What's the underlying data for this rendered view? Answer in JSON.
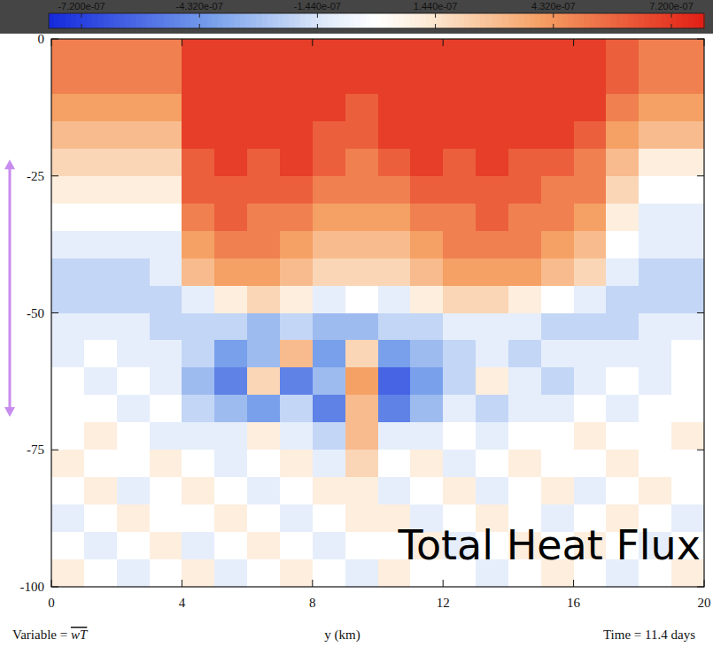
{
  "chart_data": {
    "type": "heatmap",
    "annotation": "Total Heat Flux",
    "variable_label": "Variable = wT",
    "time_label": "Time = 11.4 days",
    "x_label": "y (km)",
    "xlim": [
      0,
      20
    ],
    "xticks": [
      0,
      4,
      8,
      12,
      16,
      20
    ],
    "ylim": [
      -100,
      0
    ],
    "yticks": [
      0,
      -25,
      -50,
      -75,
      -100
    ],
    "range_arrow": {
      "y": [
        -22,
        -69
      ],
      "color": "#c88cf0"
    },
    "colorbar": {
      "range": [
        -8e-07,
        8e-07
      ],
      "ticks": [
        {
          "value": -7.2e-07,
          "label": "-7.200e-07"
        },
        {
          "value": -4.32e-07,
          "label": "-4.320e-07"
        },
        {
          "value": -1.44e-07,
          "label": "-1.440e-07"
        },
        {
          "value": 1.44e-07,
          "label": "1.440e-07"
        },
        {
          "value": 4.32e-07,
          "label": "4.320e-07"
        },
        {
          "value": 7.2e-07,
          "label": "7.200e-07"
        }
      ]
    },
    "x_edges": [
      0,
      1,
      2,
      3,
      4,
      5,
      6,
      7,
      8,
      9,
      10,
      11,
      12,
      13,
      14,
      15,
      16,
      17,
      18,
      19,
      20
    ],
    "y_edges": [
      0,
      -5,
      -10,
      -15,
      -20,
      -25,
      -30,
      -35,
      -40,
      -45,
      -50,
      -55,
      -60,
      -65,
      -70,
      -75,
      -80,
      -85,
      -90,
      -95,
      -100
    ],
    "cells": [
      [
        5e-07,
        5e-07,
        5e-07,
        5e-07,
        7e-07,
        7e-07,
        7e-07,
        7e-07,
        7e-07,
        7e-07,
        7e-07,
        7e-07,
        7e-07,
        7e-07,
        7e-07,
        7e-07,
        7e-07,
        6e-07,
        5e-07,
        5e-07
      ],
      [
        5e-07,
        5e-07,
        5e-07,
        5e-07,
        7e-07,
        7e-07,
        7e-07,
        7e-07,
        7e-07,
        7e-07,
        7e-07,
        7e-07,
        7e-07,
        7e-07,
        7e-07,
        7e-07,
        7e-07,
        6e-07,
        5e-07,
        5e-07
      ],
      [
        4e-07,
        4e-07,
        4e-07,
        4e-07,
        7e-07,
        7e-07,
        7e-07,
        7e-07,
        7e-07,
        6e-07,
        7e-07,
        7e-07,
        7e-07,
        7e-07,
        7e-07,
        7e-07,
        7e-07,
        5e-07,
        4e-07,
        4e-07
      ],
      [
        3e-07,
        3e-07,
        3e-07,
        3e-07,
        7e-07,
        7e-07,
        7e-07,
        7e-07,
        6e-07,
        6e-07,
        7e-07,
        7e-07,
        7e-07,
        7e-07,
        7e-07,
        7e-07,
        6e-07,
        4e-07,
        3e-07,
        3e-07
      ],
      [
        2e-07,
        2e-07,
        2e-07,
        2e-07,
        6e-07,
        7e-07,
        6e-07,
        7e-07,
        6e-07,
        5e-07,
        6e-07,
        7e-07,
        6e-07,
        7e-07,
        6e-07,
        6e-07,
        5e-07,
        3e-07,
        1e-07,
        1e-07
      ],
      [
        1e-07,
        1e-07,
        1e-07,
        1e-07,
        6e-07,
        6e-07,
        6e-07,
        6e-07,
        5e-07,
        5e-07,
        5e-07,
        6e-07,
        6e-07,
        6e-07,
        6e-07,
        5e-07,
        5e-07,
        2e-07,
        0,
        0
      ],
      [
        0,
        0,
        0,
        0,
        5e-07,
        6e-07,
        5e-07,
        5e-07,
        4e-07,
        4e-07,
        4e-07,
        5e-07,
        5e-07,
        6e-07,
        5e-07,
        5e-07,
        4e-07,
        1e-07,
        -1e-07,
        -1e-07
      ],
      [
        -1e-07,
        -1e-07,
        -1e-07,
        -1e-07,
        4e-07,
        5e-07,
        5e-07,
        4e-07,
        3e-07,
        3e-07,
        3e-07,
        4e-07,
        5e-07,
        5e-07,
        5e-07,
        4e-07,
        3e-07,
        0,
        -1e-07,
        -1e-07
      ],
      [
        -2e-07,
        -2e-07,
        -2e-07,
        -1e-07,
        3e-07,
        4e-07,
        4e-07,
        3e-07,
        2e-07,
        2e-07,
        2e-07,
        3e-07,
        4e-07,
        4e-07,
        4e-07,
        3e-07,
        2e-07,
        -1e-07,
        -2e-07,
        -2e-07
      ],
      [
        -2e-07,
        -2e-07,
        -2e-07,
        -2e-07,
        -1e-07,
        1e-07,
        2e-07,
        1e-07,
        -1e-07,
        0,
        -1e-07,
        1e-07,
        2e-07,
        2e-07,
        1e-07,
        0,
        -1e-07,
        -2e-07,
        -2e-07,
        -2e-07
      ],
      [
        -1e-07,
        -1e-07,
        -1e-07,
        -2e-07,
        -2e-07,
        -2e-07,
        -3e-07,
        -2e-07,
        -3e-07,
        -3e-07,
        -2e-07,
        -2e-07,
        -1e-07,
        -1e-07,
        -1e-07,
        -2e-07,
        -2e-07,
        -2e-07,
        -1e-07,
        -1e-07
      ],
      [
        -1e-07,
        0,
        -1e-07,
        -1e-07,
        -2e-07,
        -4e-07,
        -3e-07,
        3e-07,
        -4e-07,
        2e-07,
        -4e-07,
        -3e-07,
        -2e-07,
        -1e-07,
        -2e-07,
        -1e-07,
        -1e-07,
        -1e-07,
        -1e-07,
        0
      ],
      [
        0,
        -1e-07,
        0,
        -1e-07,
        -3e-07,
        -5e-07,
        2e-07,
        -5e-07,
        -3e-07,
        4e-07,
        -6e-07,
        -4e-07,
        -2e-07,
        1e-07,
        -1e-07,
        -2e-07,
        -1e-07,
        0,
        -1e-07,
        0
      ],
      [
        0,
        0,
        -1e-07,
        0,
        -2e-07,
        -3e-07,
        -4e-07,
        -2e-07,
        -5e-07,
        3e-07,
        -5e-07,
        -3e-07,
        -1e-07,
        -2e-07,
        -1e-07,
        -1e-07,
        0,
        -1e-07,
        0,
        0
      ],
      [
        0,
        1e-07,
        0,
        -1e-07,
        -1e-07,
        -1e-07,
        1e-07,
        -1e-07,
        -2e-07,
        3e-07,
        -1e-07,
        -1e-07,
        0,
        -1e-07,
        0,
        0,
        1e-07,
        0,
        0,
        1e-07
      ],
      [
        1e-07,
        0,
        0,
        1e-07,
        0,
        -1e-07,
        0,
        1e-07,
        -1e-07,
        2e-07,
        0,
        1e-07,
        -1e-07,
        0,
        1e-07,
        0,
        0,
        1e-07,
        0,
        0
      ],
      [
        0,
        1e-07,
        -1e-07,
        0,
        1e-07,
        0,
        -1e-07,
        0,
        1e-07,
        1e-07,
        -1e-07,
        0,
        1e-07,
        -1e-07,
        0,
        1e-07,
        -1e-07,
        0,
        1e-07,
        0
      ],
      [
        -1e-07,
        0,
        1e-07,
        0,
        0,
        1e-07,
        0,
        -1e-07,
        0,
        1e-07,
        1e-07,
        -1e-07,
        0,
        1e-07,
        0,
        -1e-07,
        0,
        1e-07,
        0,
        -1e-07
      ],
      [
        0,
        -1e-07,
        0,
        1e-07,
        -1e-07,
        0,
        1e-07,
        0,
        -1e-07,
        0,
        0,
        1e-07,
        -1e-07,
        0,
        1e-07,
        0,
        1e-07,
        0,
        -1e-07,
        0
      ],
      [
        1e-07,
        0,
        -1e-07,
        0,
        1e-07,
        -1e-07,
        0,
        1e-07,
        0,
        -1e-07,
        1e-07,
        0,
        0,
        -1e-07,
        0,
        1e-07,
        0,
        -1e-07,
        0,
        1e-07
      ]
    ]
  }
}
